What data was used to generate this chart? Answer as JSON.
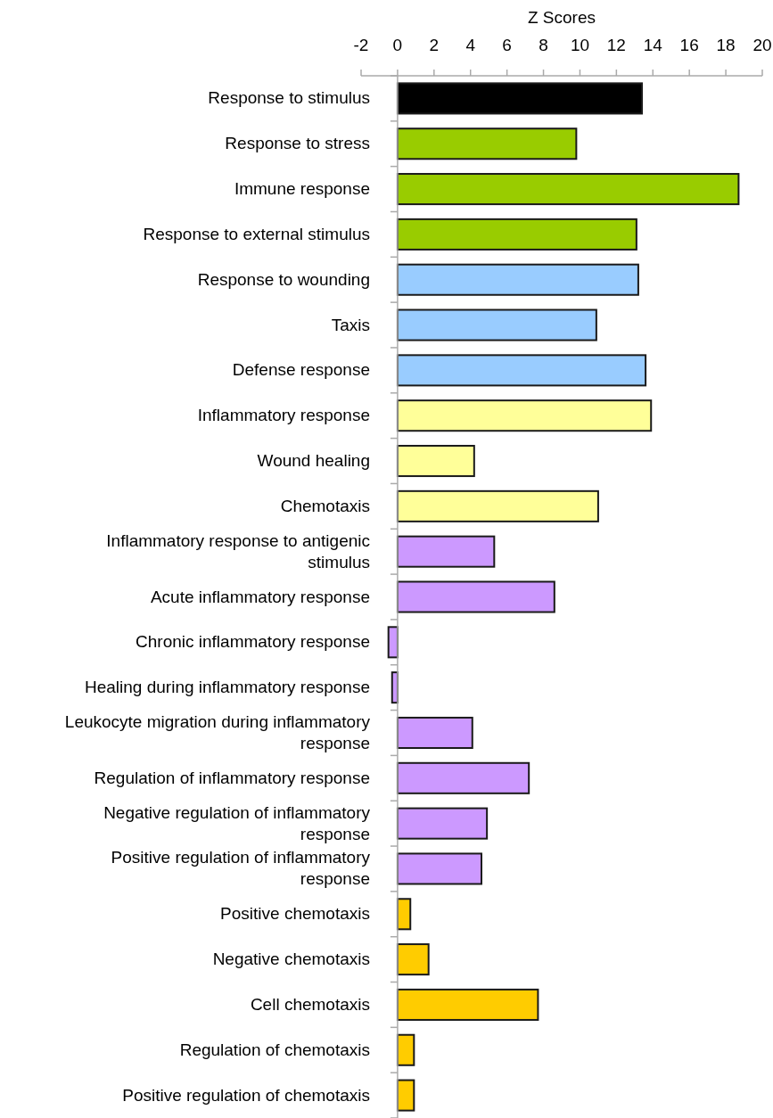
{
  "chart_data": {
    "type": "bar",
    "orientation": "horizontal",
    "xlabel": "Z Scores",
    "categories": [
      "Response to stimulus",
      "Response to stress",
      "Immune response",
      "Response to external stimulus",
      "Response to wounding",
      "Taxis",
      "Defense response",
      "Inflammatory response",
      "Wound healing",
      "Chemotaxis",
      "Inflammatory response to antigenic stimulus",
      "Acute inflammatory response",
      "Chronic inflammatory response",
      "Healing during inflammatory response",
      "Leukocyte migration during inflammatory response",
      "Regulation of inflammatory response",
      "Negative regulation of inflammatory response",
      "Positive regulation of inflammatory response",
      "Positive chemotaxis",
      "Negative chemotaxis",
      "Cell chemotaxis",
      "Regulation of chemotaxis",
      "Positive regulation of chemotaxis"
    ],
    "values": [
      13.4,
      9.8,
      18.7,
      13.1,
      13.2,
      10.9,
      13.6,
      13.9,
      4.2,
      11.0,
      5.3,
      8.6,
      -0.5,
      -0.3,
      4.1,
      7.2,
      4.9,
      4.6,
      0.7,
      1.7,
      7.7,
      0.9,
      0.9
    ],
    "colors": [
      "#000000",
      "#99cc00",
      "#99cc00",
      "#99cc00",
      "#99ccff",
      "#99ccff",
      "#99ccff",
      "#ffff99",
      "#ffff99",
      "#ffff99",
      "#cc99ff",
      "#cc99ff",
      "#cc99ff",
      "#cc99ff",
      "#cc99ff",
      "#cc99ff",
      "#cc99ff",
      "#cc99ff",
      "#ffcc00",
      "#ffcc00",
      "#ffcc00",
      "#ffcc00",
      "#ffcc00"
    ],
    "xlim": [
      -2,
      20
    ],
    "xticks": [
      -2,
      0,
      2,
      4,
      6,
      8,
      10,
      12,
      14,
      16,
      18,
      20
    ]
  }
}
